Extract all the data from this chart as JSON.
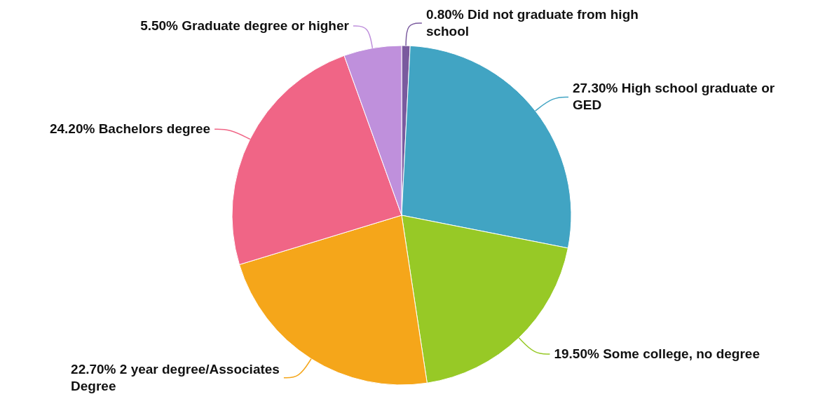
{
  "chart_data": {
    "type": "pie",
    "categories": [
      "Did not graduate from high school",
      "High school graduate or GED",
      "Some college, no degree",
      "2 year degree/Associates Degree",
      "Bachelors degree",
      "Graduate degree or higher"
    ],
    "values": [
      0.8,
      27.3,
      19.5,
      22.7,
      24.2,
      5.5
    ],
    "value_labels": [
      "0.80%",
      "27.30%",
      "19.50%",
      "22.70%",
      "24.20%",
      "5.50%"
    ],
    "colors": [
      "#7a5a9e",
      "#41a4c3",
      "#97c926",
      "#f5a61a",
      "#f06586",
      "#bf90dc"
    ]
  }
}
